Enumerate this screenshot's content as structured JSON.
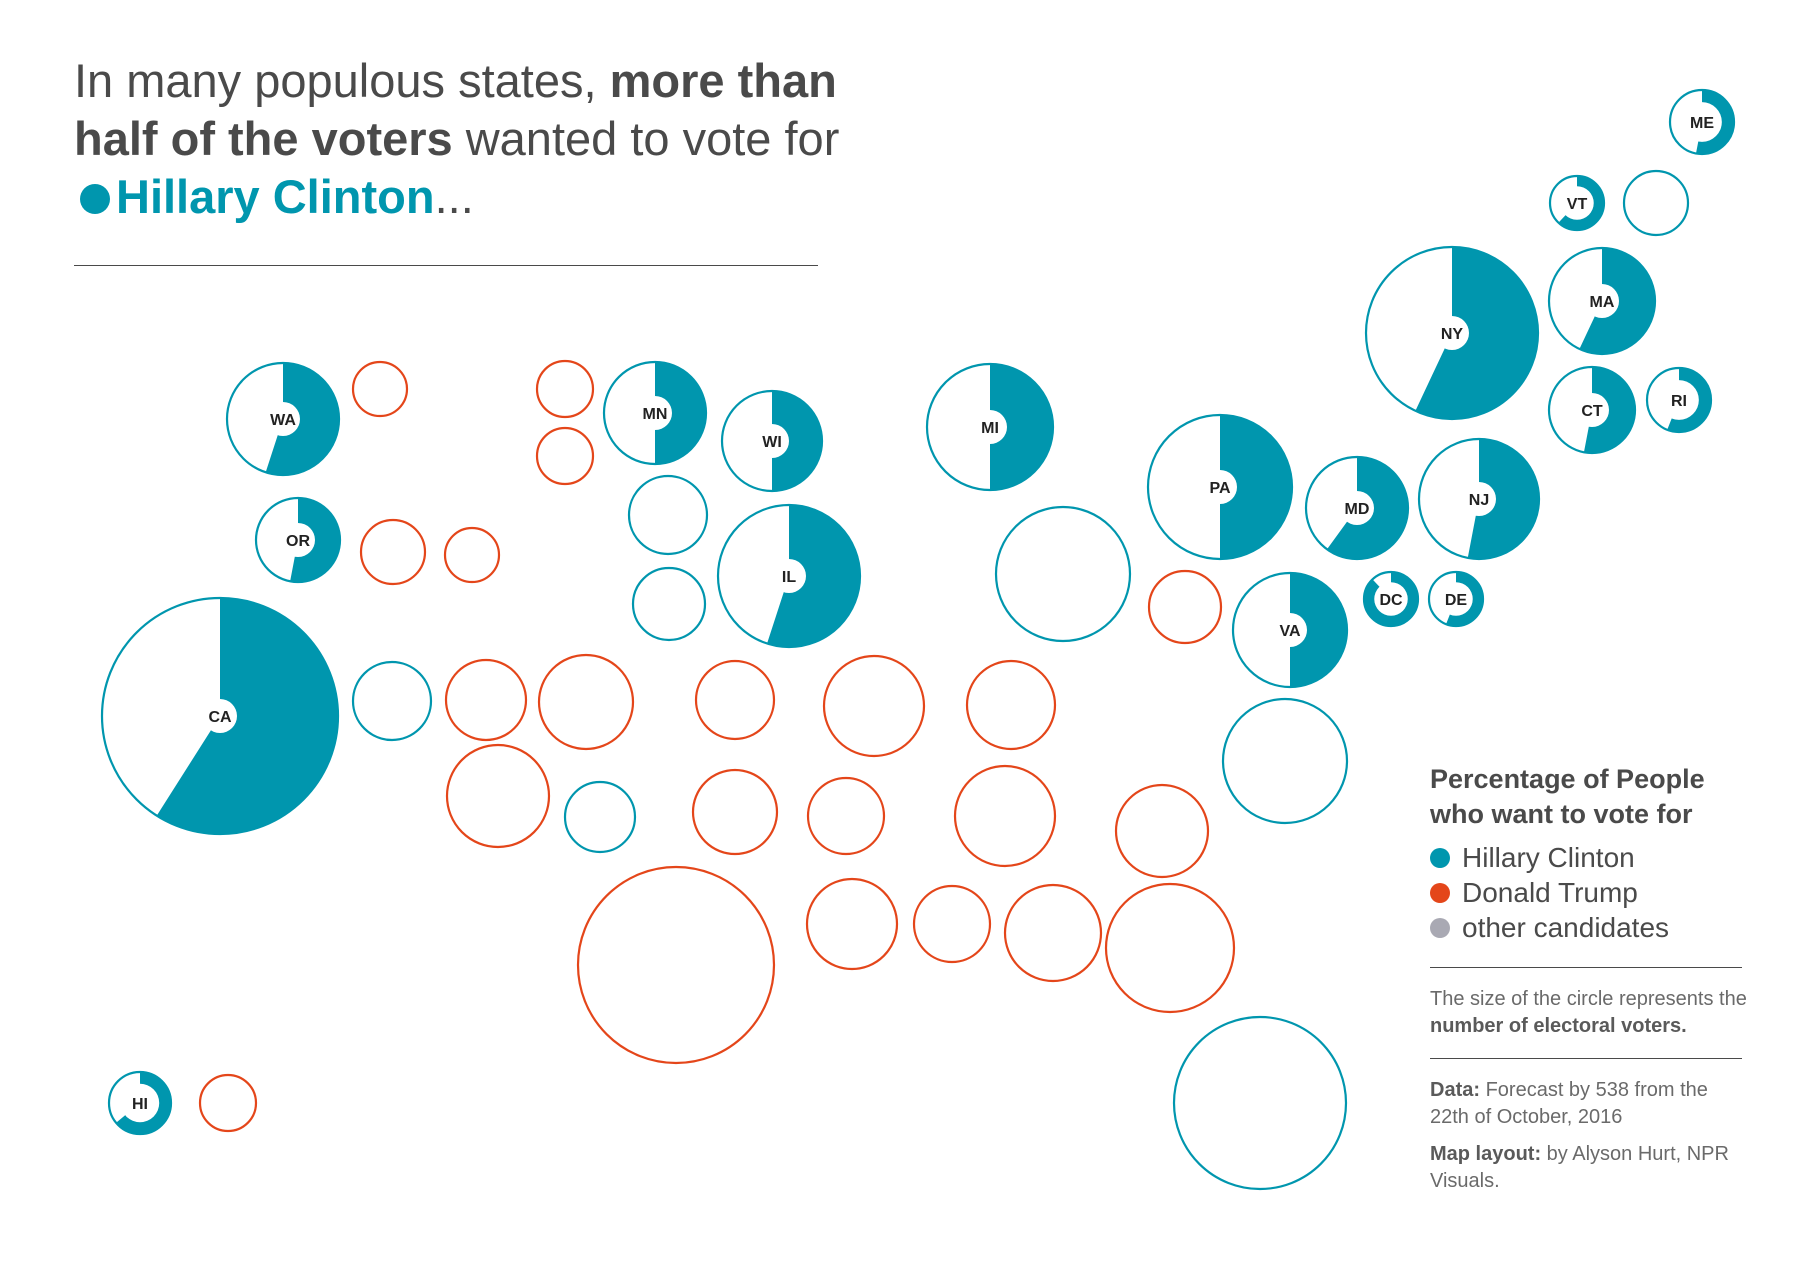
{
  "headline": {
    "part1": "In many populous states, ",
    "bold": "more than half of the voters",
    "part2": " wanted to vote for ",
    "candidate": "Hillary Clinton",
    "ellipsis": "..."
  },
  "colors": {
    "clinton": "#0096ae",
    "trump": "#e4461a",
    "other": "#a9a9b3",
    "text": "#4a4a4a",
    "bubble_fill": "#ffffff"
  },
  "legend": {
    "title": "Percentage of People who want to vote for",
    "items": [
      {
        "label": "Hillary Clinton",
        "color": "#0096ae"
      },
      {
        "label": "Donald Trump",
        "color": "#e4461a"
      },
      {
        "label": "other candidates",
        "color": "#a9a9b3"
      }
    ],
    "size_note_part1": "The size of the circle represents the ",
    "size_note_bold": "number of electoral voters."
  },
  "source": {
    "data_label": "Data:",
    "data_text": " Forecast by 538 from the 22th of October, 2016",
    "layout_label": "Map layout:",
    "layout_text": " by Alyson Hurt, NPR Visuals."
  },
  "chart_data": {
    "type": "bubble-map",
    "size_meaning": "number of electoral voters",
    "value_meaning": "share of voters who want to vote for Hillary Clinton (filled wedge), shown only for states where the share is more than half",
    "states": [
      {
        "label": "ME",
        "leaning": "clinton",
        "clinton_share": 0.53
      },
      {
        "label": "VT",
        "leaning": "clinton",
        "clinton_share": 0.62
      },
      {
        "label": "",
        "leaning": "clinton",
        "clinton_share": null
      },
      {
        "label": "MA",
        "leaning": "clinton",
        "clinton_share": 0.57
      },
      {
        "label": "NY",
        "leaning": "clinton",
        "clinton_share": 0.57
      },
      {
        "label": "CT",
        "leaning": "clinton",
        "clinton_share": 0.53
      },
      {
        "label": "RI",
        "leaning": "clinton",
        "clinton_share": 0.56
      },
      {
        "label": "NJ",
        "leaning": "clinton",
        "clinton_share": 0.53
      },
      {
        "label": "PA",
        "leaning": "clinton",
        "clinton_share": 0.5
      },
      {
        "label": "MD",
        "leaning": "clinton",
        "clinton_share": 0.6
      },
      {
        "label": "DC",
        "leaning": "clinton",
        "clinton_share": 0.88
      },
      {
        "label": "DE",
        "leaning": "clinton",
        "clinton_share": 0.56
      },
      {
        "label": "VA",
        "leaning": "clinton",
        "clinton_share": 0.5
      },
      {
        "label": "MI",
        "leaning": "clinton",
        "clinton_share": 0.5
      },
      {
        "label": "WI",
        "leaning": "clinton",
        "clinton_share": 0.5
      },
      {
        "label": "MN",
        "leaning": "clinton",
        "clinton_share": 0.5
      },
      {
        "label": "IL",
        "leaning": "clinton",
        "clinton_share": 0.55
      },
      {
        "label": "WA",
        "leaning": "clinton",
        "clinton_share": 0.55
      },
      {
        "label": "OR",
        "leaning": "clinton",
        "clinton_share": 0.53
      },
      {
        "label": "CA",
        "leaning": "clinton",
        "clinton_share": 0.59
      },
      {
        "label": "HI",
        "leaning": "clinton",
        "clinton_share": 0.64
      },
      {
        "label": "",
        "leaning": "trump",
        "clinton_share": null
      },
      {
        "label": "",
        "leaning": "trump",
        "clinton_share": null
      },
      {
        "label": "",
        "leaning": "trump",
        "clinton_share": null
      },
      {
        "label": "",
        "leaning": "clinton",
        "clinton_share": null
      },
      {
        "label": "",
        "leaning": "clinton",
        "clinton_share": null
      },
      {
        "label": "",
        "leaning": "trump",
        "clinton_share": null
      },
      {
        "label": "",
        "leaning": "trump",
        "clinton_share": null
      },
      {
        "label": "",
        "leaning": "trump",
        "clinton_share": null
      },
      {
        "label": "",
        "leaning": "clinton",
        "clinton_share": null
      },
      {
        "label": "",
        "leaning": "clinton",
        "clinton_share": null
      },
      {
        "label": "",
        "leaning": "clinton",
        "clinton_share": null
      },
      {
        "label": "",
        "leaning": "trump",
        "clinton_share": null
      },
      {
        "label": "",
        "leaning": "trump",
        "clinton_share": null
      },
      {
        "label": "",
        "leaning": "trump",
        "clinton_share": null
      },
      {
        "label": "",
        "leaning": "trump",
        "clinton_share": null
      },
      {
        "label": "",
        "leaning": "trump",
        "clinton_share": null
      },
      {
        "label": "",
        "leaning": "trump",
        "clinton_share": null
      },
      {
        "label": "",
        "leaning": "clinton",
        "clinton_share": null
      },
      {
        "label": "",
        "leaning": "trump",
        "clinton_share": null
      },
      {
        "label": "",
        "leaning": "trump",
        "clinton_share": null
      },
      {
        "label": "",
        "leaning": "trump",
        "clinton_share": null
      },
      {
        "label": "",
        "leaning": "trump",
        "clinton_share": null
      },
      {
        "label": "",
        "leaning": "clinton",
        "clinton_share": null
      },
      {
        "label": "",
        "leaning": "trump",
        "clinton_share": null
      },
      {
        "label": "",
        "leaning": "trump",
        "clinton_share": null
      },
      {
        "label": "",
        "leaning": "trump",
        "clinton_share": null
      },
      {
        "label": "",
        "leaning": "trump",
        "clinton_share": null
      },
      {
        "label": "",
        "leaning": "trump",
        "clinton_share": null
      },
      {
        "label": "",
        "leaning": "clinton",
        "clinton_share": null
      },
      {
        "label": "",
        "leaning": "trump",
        "clinton_share": null
      }
    ]
  }
}
